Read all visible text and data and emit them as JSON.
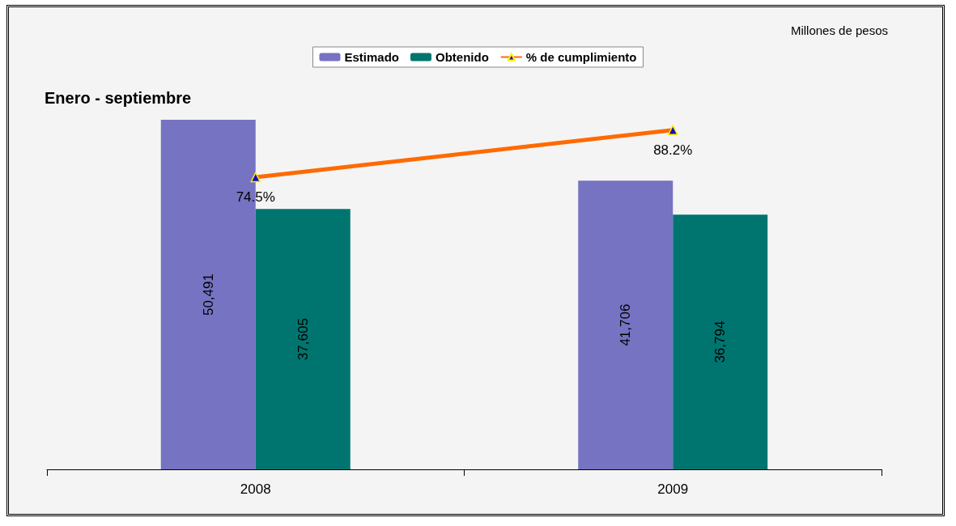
{
  "chart_data": {
    "type": "bar",
    "title": "Enero - septiembre",
    "annotations": [
      "Millones de pesos"
    ],
    "categories": [
      "2008",
      "2009"
    ],
    "series": [
      {
        "name": "Estimado",
        "color": "#7673c2",
        "values": [
          50491,
          41706
        ],
        "value_labels": [
          "50,491",
          "41,706"
        ]
      },
      {
        "name": "Obtenido",
        "color": "#007570",
        "values": [
          37605,
          36794
        ],
        "value_labels": [
          "37,605",
          "36,794"
        ]
      },
      {
        "name": "% de cumplimiento",
        "type": "line",
        "axis": "y2",
        "color": "#ff6a00",
        "values": [
          74.5,
          88.2
        ],
        "value_labels": [
          "74.5%",
          "88.2%"
        ],
        "marker": "triangle"
      }
    ],
    "tick_labels": "x",
    "legend": "top"
  }
}
